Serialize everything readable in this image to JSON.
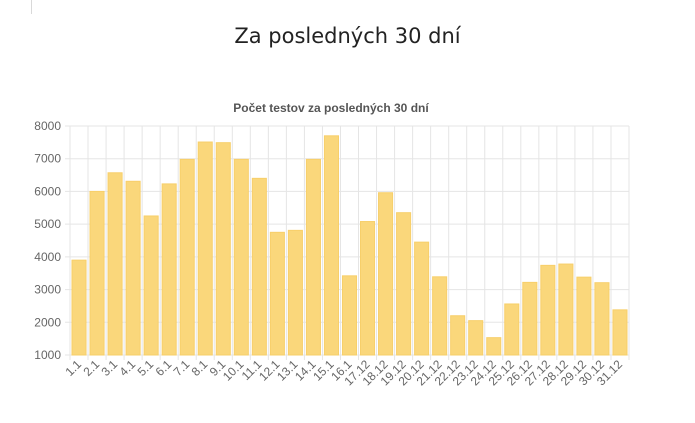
{
  "page": {
    "title": "Za posledných 30 dní"
  },
  "colors": {
    "bar_fill": "#fad77b",
    "bar_stroke": "#f7cf6a",
    "grid": "#e5e5e5",
    "axis_text": "#666666",
    "title_text": "#555555"
  },
  "chart_data": {
    "type": "bar",
    "title": "Počet testov za posledných 30 dní",
    "xlabel": "",
    "ylabel": "",
    "ylim": [
      1000,
      8000
    ],
    "yticks": [
      1000,
      2000,
      3000,
      4000,
      5000,
      6000,
      7000,
      8000
    ],
    "grid": true,
    "legend": "none",
    "categories": [
      "1.1",
      "2.1",
      "3.1",
      "4.1",
      "5.1",
      "6.1",
      "7.1",
      "8.1",
      "9.1",
      "10.1",
      "11.1",
      "12.1",
      "13.1",
      "14.1",
      "15.1",
      "16.1",
      "17.12",
      "18.12",
      "19.12",
      "20.12",
      "21.12",
      "22.12",
      "23.12",
      "24.12",
      "25.12",
      "26.12",
      "27.12",
      "28.12",
      "29.12",
      "30.12",
      "31.12"
    ],
    "values": [
      3900,
      6000,
      6570,
      6310,
      5250,
      6230,
      6980,
      7510,
      7490,
      6980,
      6400,
      4750,
      4810,
      6980,
      7700,
      3420,
      5080,
      5960,
      5350,
      4450,
      3390,
      2200,
      2050,
      1530,
      2560,
      3220,
      3740,
      3780,
      3380,
      3210,
      2380
    ]
  }
}
